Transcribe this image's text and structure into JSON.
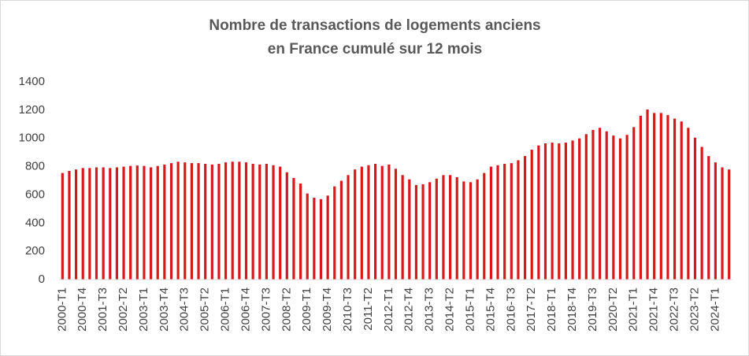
{
  "chart_data": {
    "type": "bar",
    "title": [
      "Nombre de transactions de logements anciens",
      "en France cumulé sur 12 mois"
    ],
    "categories": [
      "2000-T1",
      null,
      null,
      "2000-T4",
      null,
      null,
      "2001-T3",
      null,
      null,
      "2002-T2",
      null,
      null,
      "2003-T1",
      null,
      null,
      "2003-T4",
      null,
      null,
      "2004-T3",
      null,
      null,
      "2005-T2",
      null,
      null,
      "2006-T1",
      null,
      null,
      "2006-T4",
      null,
      null,
      "2007-T3",
      null,
      null,
      "2008-T2",
      null,
      null,
      "2009-T1",
      null,
      null,
      "2009-T4",
      null,
      null,
      "2010-T3",
      null,
      null,
      "2011-T2",
      null,
      null,
      "2012-T1",
      null,
      null,
      "2012-T4",
      null,
      null,
      "2013-T3",
      null,
      null,
      "2014-T2",
      null,
      null,
      "2015-T1",
      null,
      null,
      "2015-T4",
      null,
      null,
      "2016-T3",
      null,
      null,
      "2017-T2",
      null,
      null,
      "2018-T1",
      null,
      null,
      "2018-T4",
      null,
      null,
      "2019-T3",
      null,
      null,
      "2020-T2",
      null,
      null,
      "2021-T1",
      null,
      null,
      "2021-T4",
      null,
      null,
      "2022-T3",
      null,
      null,
      "2023-T2",
      null,
      null,
      "2024-T1",
      null,
      null
    ],
    "values": [
      755,
      770,
      780,
      790,
      790,
      795,
      795,
      790,
      795,
      800,
      805,
      808,
      805,
      795,
      805,
      815,
      825,
      835,
      830,
      825,
      825,
      820,
      815,
      820,
      830,
      835,
      835,
      830,
      820,
      815,
      820,
      810,
      800,
      760,
      720,
      680,
      610,
      580,
      570,
      595,
      660,
      700,
      740,
      780,
      800,
      810,
      820,
      805,
      815,
      785,
      740,
      710,
      670,
      675,
      690,
      715,
      740,
      740,
      725,
      695,
      690,
      710,
      755,
      800,
      810,
      820,
      825,
      845,
      875,
      920,
      950,
      965,
      970,
      965,
      970,
      985,
      1000,
      1030,
      1060,
      1075,
      1050,
      1020,
      1000,
      1025,
      1080,
      1160,
      1205,
      1180,
      1180,
      1165,
      1140,
      1120,
      1075,
      1005,
      940,
      875,
      830,
      795,
      780
    ],
    "color": "#d7191c",
    "ylim": [
      0,
      1400
    ],
    "yticks": [
      0,
      200,
      400,
      600,
      800,
      1000,
      1200,
      1400
    ],
    "grid": false
  }
}
